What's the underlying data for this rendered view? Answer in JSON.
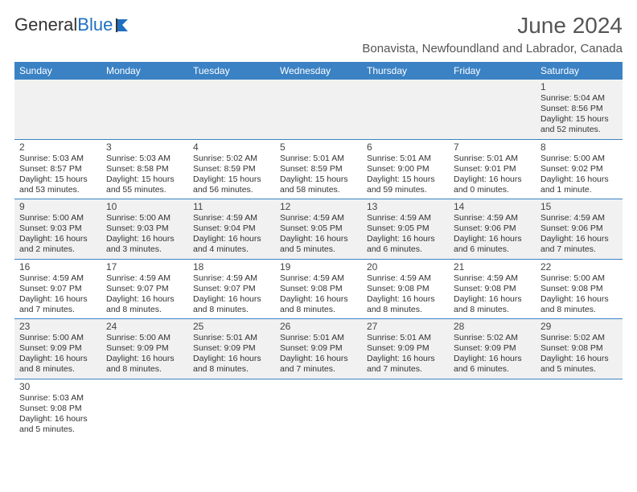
{
  "brand": {
    "word1": "General",
    "word2": "Blue",
    "logo_color": "#1e6fbf"
  },
  "title": "June 2024",
  "location": "Bonavista, Newfoundland and Labrador, Canada",
  "colors": {
    "header_blue": "#3b82c4",
    "row_separator": "#3b82c4",
    "odd_row_bg": "#f1f1f1",
    "page_bg": "#ffffff",
    "title_color": "#555555",
    "text_color": "#222222"
  },
  "weekdays": [
    "Sunday",
    "Monday",
    "Tuesday",
    "Wednesday",
    "Thursday",
    "Friday",
    "Saturday"
  ],
  "cell_label_prefixes": {
    "sunrise": "Sunrise: ",
    "sunset": "Sunset: ",
    "daylight": "Daylight: "
  },
  "weeks": [
    [
      null,
      null,
      null,
      null,
      null,
      null,
      {
        "d": "1",
        "sr": "5:04 AM",
        "ss": "8:56 PM",
        "dl": "15 hours and 52 minutes."
      }
    ],
    [
      {
        "d": "2",
        "sr": "5:03 AM",
        "ss": "8:57 PM",
        "dl": "15 hours and 53 minutes."
      },
      {
        "d": "3",
        "sr": "5:03 AM",
        "ss": "8:58 PM",
        "dl": "15 hours and 55 minutes."
      },
      {
        "d": "4",
        "sr": "5:02 AM",
        "ss": "8:59 PM",
        "dl": "15 hours and 56 minutes."
      },
      {
        "d": "5",
        "sr": "5:01 AM",
        "ss": "8:59 PM",
        "dl": "15 hours and 58 minutes."
      },
      {
        "d": "6",
        "sr": "5:01 AM",
        "ss": "9:00 PM",
        "dl": "15 hours and 59 minutes."
      },
      {
        "d": "7",
        "sr": "5:01 AM",
        "ss": "9:01 PM",
        "dl": "16 hours and 0 minutes."
      },
      {
        "d": "8",
        "sr": "5:00 AM",
        "ss": "9:02 PM",
        "dl": "16 hours and 1 minute."
      }
    ],
    [
      {
        "d": "9",
        "sr": "5:00 AM",
        "ss": "9:03 PM",
        "dl": "16 hours and 2 minutes."
      },
      {
        "d": "10",
        "sr": "5:00 AM",
        "ss": "9:03 PM",
        "dl": "16 hours and 3 minutes."
      },
      {
        "d": "11",
        "sr": "4:59 AM",
        "ss": "9:04 PM",
        "dl": "16 hours and 4 minutes."
      },
      {
        "d": "12",
        "sr": "4:59 AM",
        "ss": "9:05 PM",
        "dl": "16 hours and 5 minutes."
      },
      {
        "d": "13",
        "sr": "4:59 AM",
        "ss": "9:05 PM",
        "dl": "16 hours and 6 minutes."
      },
      {
        "d": "14",
        "sr": "4:59 AM",
        "ss": "9:06 PM",
        "dl": "16 hours and 6 minutes."
      },
      {
        "d": "15",
        "sr": "4:59 AM",
        "ss": "9:06 PM",
        "dl": "16 hours and 7 minutes."
      }
    ],
    [
      {
        "d": "16",
        "sr": "4:59 AM",
        "ss": "9:07 PM",
        "dl": "16 hours and 7 minutes."
      },
      {
        "d": "17",
        "sr": "4:59 AM",
        "ss": "9:07 PM",
        "dl": "16 hours and 8 minutes."
      },
      {
        "d": "18",
        "sr": "4:59 AM",
        "ss": "9:07 PM",
        "dl": "16 hours and 8 minutes."
      },
      {
        "d": "19",
        "sr": "4:59 AM",
        "ss": "9:08 PM",
        "dl": "16 hours and 8 minutes."
      },
      {
        "d": "20",
        "sr": "4:59 AM",
        "ss": "9:08 PM",
        "dl": "16 hours and 8 minutes."
      },
      {
        "d": "21",
        "sr": "4:59 AM",
        "ss": "9:08 PM",
        "dl": "16 hours and 8 minutes."
      },
      {
        "d": "22",
        "sr": "5:00 AM",
        "ss": "9:08 PM",
        "dl": "16 hours and 8 minutes."
      }
    ],
    [
      {
        "d": "23",
        "sr": "5:00 AM",
        "ss": "9:09 PM",
        "dl": "16 hours and 8 minutes."
      },
      {
        "d": "24",
        "sr": "5:00 AM",
        "ss": "9:09 PM",
        "dl": "16 hours and 8 minutes."
      },
      {
        "d": "25",
        "sr": "5:01 AM",
        "ss": "9:09 PM",
        "dl": "16 hours and 8 minutes."
      },
      {
        "d": "26",
        "sr": "5:01 AM",
        "ss": "9:09 PM",
        "dl": "16 hours and 7 minutes."
      },
      {
        "d": "27",
        "sr": "5:01 AM",
        "ss": "9:09 PM",
        "dl": "16 hours and 7 minutes."
      },
      {
        "d": "28",
        "sr": "5:02 AM",
        "ss": "9:09 PM",
        "dl": "16 hours and 6 minutes."
      },
      {
        "d": "29",
        "sr": "5:02 AM",
        "ss": "9:08 PM",
        "dl": "16 hours and 5 minutes."
      }
    ],
    [
      {
        "d": "30",
        "sr": "5:03 AM",
        "ss": "9:08 PM",
        "dl": "16 hours and 5 minutes."
      },
      null,
      null,
      null,
      null,
      null,
      null
    ]
  ]
}
